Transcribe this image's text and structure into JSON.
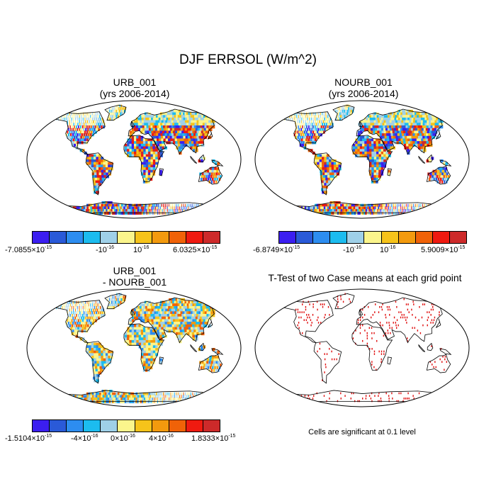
{
  "title": "DJF ERRSOL (W/m^2)",
  "panels": {
    "urb": {
      "title_line1": "URB_001",
      "title_line2": "(yrs 2006-2014)"
    },
    "nourb": {
      "title_line1": "NOURB_001",
      "title_line2": "(yrs 2006-2014)"
    },
    "diff": {
      "title_line1": "URB_001",
      "title_line2": "- NOURB_001"
    },
    "ttest": {
      "title": "T-Test of two Case means at each grid point",
      "caption": "Cells are significant at 0.1 level"
    }
  },
  "colorbar_colors": [
    "#3b1ef0",
    "#2a5ad8",
    "#2d8df0",
    "#1cbcef",
    "#9fd0e8",
    "#fbf58c",
    "#f6c31a",
    "#f39a0e",
    "#f06208",
    "#ef1a10",
    "#cd2a2a"
  ],
  "colorbars": {
    "urb": {
      "min_mant": "-7.0855",
      "min_exp": "-15",
      "neg_label": "-10",
      "neg_exp": "-16",
      "pos_label": "10",
      "pos_exp": "-16",
      "max_mant": "6.0325",
      "max_exp": "-15"
    },
    "nourb": {
      "min_mant": "-6.8749",
      "min_exp": "-15",
      "neg_label": "-10",
      "neg_exp": "-16",
      "pos_label": "10",
      "pos_exp": "-16",
      "max_mant": "5.9009",
      "max_exp": "-15"
    },
    "diff": {
      "min_mant": "-1.5104",
      "min_exp": "-15",
      "l2_mant": "-4",
      "l2_exp": "-16",
      "l3_mant": "0",
      "l3_exp": "-16",
      "l4_mant": "4",
      "l4_exp": "-16",
      "max_mant": "1.8333",
      "max_exp": "-15"
    }
  },
  "times_sign": "×10"
}
